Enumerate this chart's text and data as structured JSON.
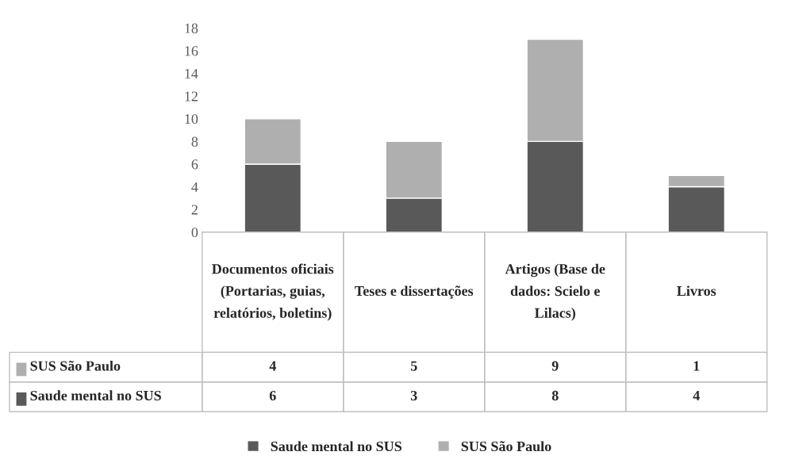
{
  "chart_data": {
    "type": "bar",
    "stacked": true,
    "categories": [
      "Documentos oficiais (Portarias, guias, relatórios, boletins)",
      "Teses e dissertações",
      "Artigos (Base de dados: Scielo e Lilacs)",
      "Livros"
    ],
    "series": [
      {
        "name": "Saude mental no SUS",
        "color": "#595959",
        "values": [
          6,
          3,
          8,
          4
        ]
      },
      {
        "name": "SUS São Paulo",
        "color": "#afafaf",
        "values": [
          4,
          5,
          9,
          1
        ]
      }
    ],
    "ylim": [
      0,
      18
    ],
    "yticks": [
      0,
      2,
      4,
      6,
      8,
      10,
      12,
      14,
      16,
      18
    ],
    "grid": false,
    "legend": "bottom",
    "data_labels": true
  }
}
